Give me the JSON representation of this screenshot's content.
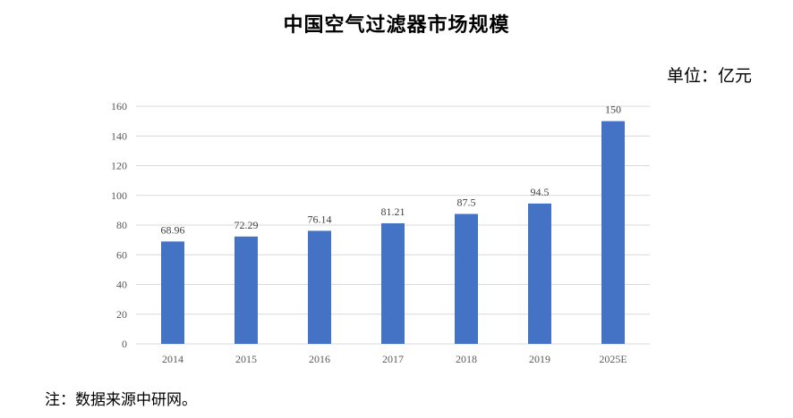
{
  "chart_data": {
    "type": "bar",
    "title": "中国空气过滤器市场规模",
    "unit_label": "单位：亿元",
    "categories": [
      "2014",
      "2015",
      "2016",
      "2017",
      "2018",
      "2019",
      "2025E"
    ],
    "values": [
      68.96,
      72.29,
      76.14,
      81.21,
      87.5,
      94.5,
      150
    ],
    "data_labels": [
      "68.96",
      "72.29",
      "76.14",
      "81.21",
      "87.5",
      "94.5",
      "150"
    ],
    "ylim": [
      0,
      160
    ],
    "yticks": [
      0,
      20,
      40,
      60,
      80,
      100,
      120,
      140,
      160
    ],
    "grid": true,
    "bar_color": "#4472C4",
    "grid_color": "#D9D9D9"
  },
  "note": "注：数据来源中研网。"
}
